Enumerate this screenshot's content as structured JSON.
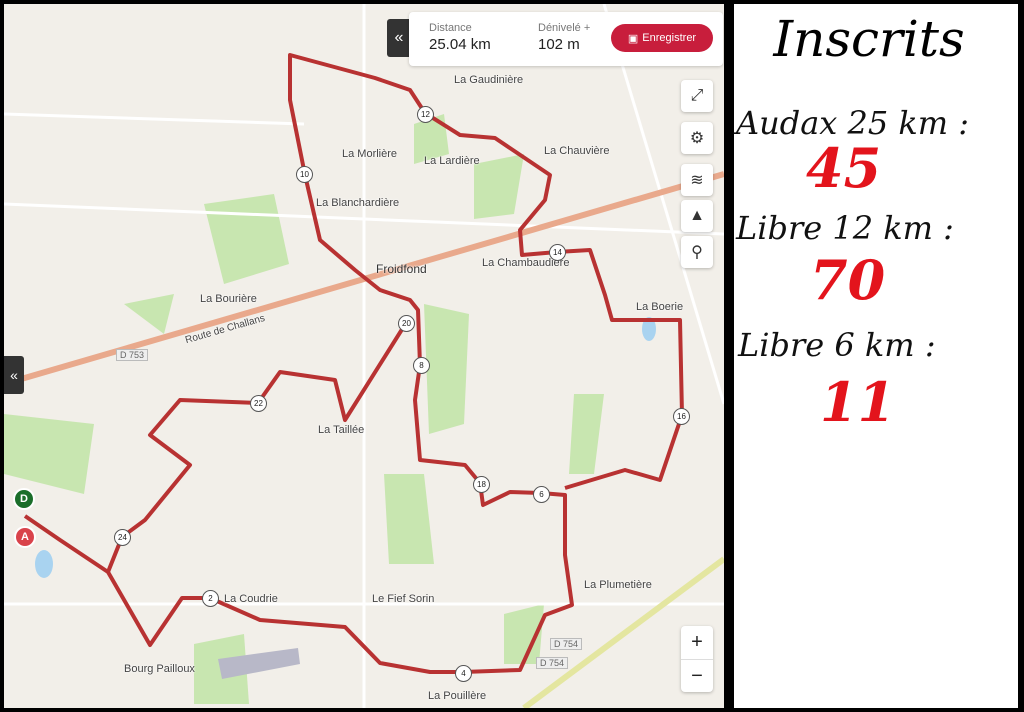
{
  "stats": {
    "distance_label": "Distance",
    "distance_value": "25.04 km",
    "elevation_label": "Dénivelé +",
    "elevation_value": "102 m",
    "save_label": "Enregistrer"
  },
  "map": {
    "places": [
      "La Gaudinière",
      "La Morlière",
      "La Lardière",
      "La Chauvière",
      "La Blanchardière",
      "Froidfond",
      "La Chambaudière",
      "La Bourière",
      "La Boerie",
      "La Taillée",
      "La Plumetière",
      "Le Fief Sorin",
      "La Coudrie",
      "Bourg Pailloux",
      "La Pouillère"
    ],
    "roads": [
      "D 753",
      "Route de Challans",
      "D 754",
      "D 754"
    ],
    "start_label": "D",
    "end_label": "A",
    "km_markers": [
      "2",
      "4",
      "6",
      "8",
      "10",
      "12",
      "14",
      "16",
      "18",
      "20",
      "22",
      "24"
    ],
    "route_color": "#b83232"
  },
  "controls": {
    "zoom_in": "+",
    "zoom_out": "−"
  },
  "panel": {
    "title": "Inscrits",
    "categories": [
      {
        "label": "Audax 25 km :",
        "count": "45"
      },
      {
        "label": "Libre 12 km :",
        "count": "70"
      },
      {
        "label": "Libre 6 km :",
        "count": "11"
      }
    ]
  }
}
